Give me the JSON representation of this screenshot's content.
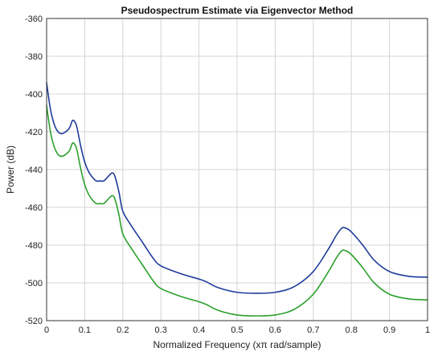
{
  "chart_data": {
    "type": "line",
    "title": "Pseudospectrum Estimate via Eigenvector Method",
    "xlabel": "Normalized Frequency (xπ rad/sample)",
    "ylabel": "Power (dB)",
    "xlim": [
      0,
      1
    ],
    "ylim": [
      -520,
      -360
    ],
    "x_ticks": [
      0,
      0.1,
      0.2,
      0.3,
      0.4,
      0.5,
      0.6,
      0.7,
      0.8,
      0.9,
      1
    ],
    "x_tick_labels": [
      "0",
      "0.1",
      "0.2",
      "0.3",
      "0.4",
      "0.5",
      "0.6",
      "0.7",
      "0.8",
      "0.9",
      "1"
    ],
    "y_ticks": [
      -360,
      -380,
      -400,
      -420,
      -440,
      -460,
      -480,
      -500,
      -520
    ],
    "y_tick_labels": [
      "-360",
      "-380",
      "-400",
      "-420",
      "-440",
      "-460",
      "-480",
      "-500",
      "-520"
    ],
    "grid": true,
    "series": [
      {
        "color": "#1f3c9a",
        "x": [
          0,
          0.01,
          0.02,
          0.03,
          0.04,
          0.05,
          0.06,
          0.068,
          0.075,
          0.08,
          0.09,
          0.1,
          0.11,
          0.12,
          0.13,
          0.14,
          0.15,
          0.16,
          0.17,
          0.175,
          0.18,
          0.19,
          0.2,
          0.22,
          0.25,
          0.28,
          0.3,
          0.35,
          0.4,
          0.42,
          0.45,
          0.5,
          0.55,
          0.6,
          0.65,
          0.7,
          0.74,
          0.76,
          0.775,
          0.785,
          0.8,
          0.83,
          0.86,
          0.9,
          0.95,
          1
        ],
        "values": [
          -394,
          -408,
          -416,
          -420,
          -421,
          -420,
          -418,
          -414,
          -415,
          -418,
          -428,
          -436,
          -441,
          -444,
          -446,
          -446,
          -446,
          -444,
          -442,
          -442,
          -444,
          -452,
          -462,
          -469,
          -478,
          -487,
          -491,
          -495,
          -498,
          -499.5,
          -502.5,
          -505,
          -505.5,
          -505,
          -502,
          -494,
          -482,
          -475,
          -471,
          -471,
          -473,
          -480,
          -488,
          -494,
          -496.5,
          -497
        ]
      },
      {
        "color": "#2ca02c",
        "x": [
          0,
          0.01,
          0.02,
          0.03,
          0.04,
          0.05,
          0.06,
          0.068,
          0.075,
          0.08,
          0.09,
          0.1,
          0.11,
          0.12,
          0.13,
          0.14,
          0.15,
          0.16,
          0.17,
          0.175,
          0.18,
          0.19,
          0.2,
          0.22,
          0.25,
          0.28,
          0.3,
          0.35,
          0.4,
          0.42,
          0.45,
          0.5,
          0.55,
          0.6,
          0.65,
          0.7,
          0.74,
          0.76,
          0.775,
          0.785,
          0.8,
          0.83,
          0.86,
          0.9,
          0.95,
          1
        ],
        "values": [
          -406,
          -420,
          -428,
          -432,
          -433,
          -432,
          -430,
          -426,
          -427,
          -430,
          -440,
          -448,
          -453,
          -456,
          -458,
          -458,
          -458,
          -456,
          -454,
          -454,
          -456,
          -464,
          -474,
          -481,
          -490,
          -499,
          -503,
          -507,
          -510,
          -511.5,
          -514.5,
          -517,
          -517.5,
          -517,
          -514,
          -506,
          -494,
          -487,
          -483,
          -483,
          -485,
          -492,
          -500,
          -506,
          -508.5,
          -509
        ]
      }
    ]
  }
}
